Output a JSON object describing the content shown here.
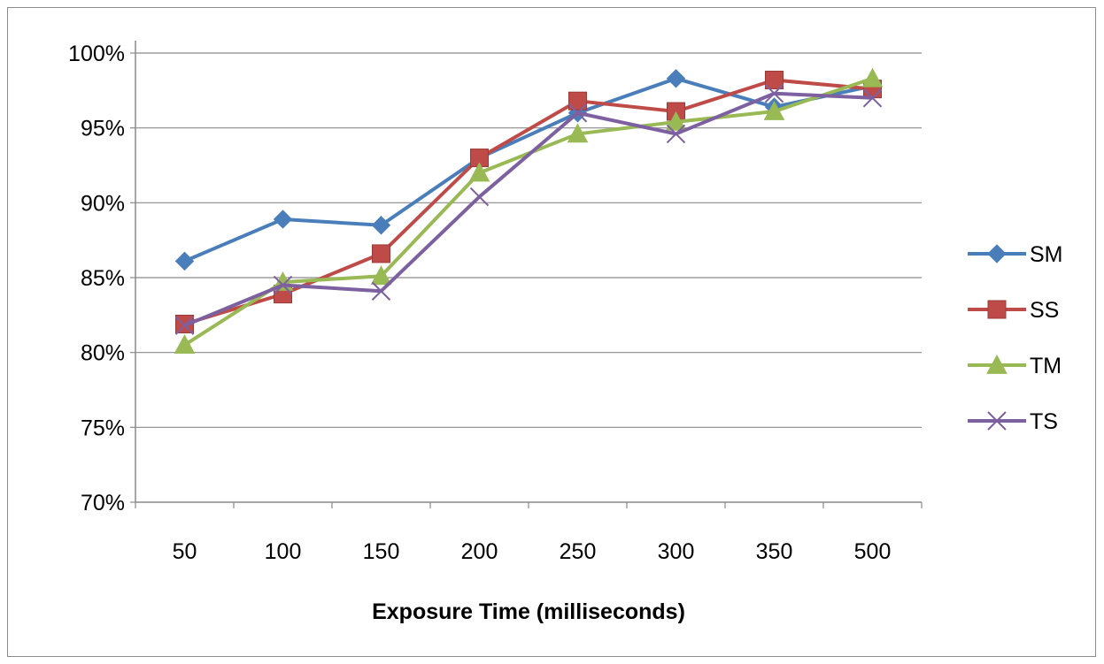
{
  "chart_data": {
    "type": "line",
    "title": "",
    "xlabel": "Exposure Time (milliseconds)",
    "ylabel": "",
    "categories": [
      "50",
      "100",
      "150",
      "200",
      "250",
      "300",
      "350",
      "500"
    ],
    "y_ticks": [
      "70%",
      "75%",
      "80%",
      "85%",
      "90%",
      "95%",
      "100%"
    ],
    "ylim": [
      70,
      100
    ],
    "y_unit": "%",
    "grid": "horizontal",
    "legend_position": "right",
    "series": [
      {
        "name": "SM",
        "color": "#4a7ebb",
        "marker": "diamond",
        "values": [
          86.1,
          88.9,
          88.5,
          93.0,
          96.0,
          98.3,
          96.4,
          97.8
        ]
      },
      {
        "name": "SS",
        "color": "#be4b48",
        "marker": "square",
        "values": [
          81.9,
          83.9,
          86.6,
          93.0,
          96.8,
          96.1,
          98.2,
          97.6
        ]
      },
      {
        "name": "TM",
        "color": "#98b954",
        "marker": "triangle",
        "values": [
          80.5,
          84.7,
          85.1,
          92.0,
          94.6,
          95.4,
          96.1,
          98.3
        ]
      },
      {
        "name": "TS",
        "color": "#7d60a0",
        "marker": "x",
        "values": [
          81.8,
          84.5,
          84.1,
          90.4,
          96.0,
          94.6,
          97.3,
          97.0
        ]
      }
    ]
  }
}
